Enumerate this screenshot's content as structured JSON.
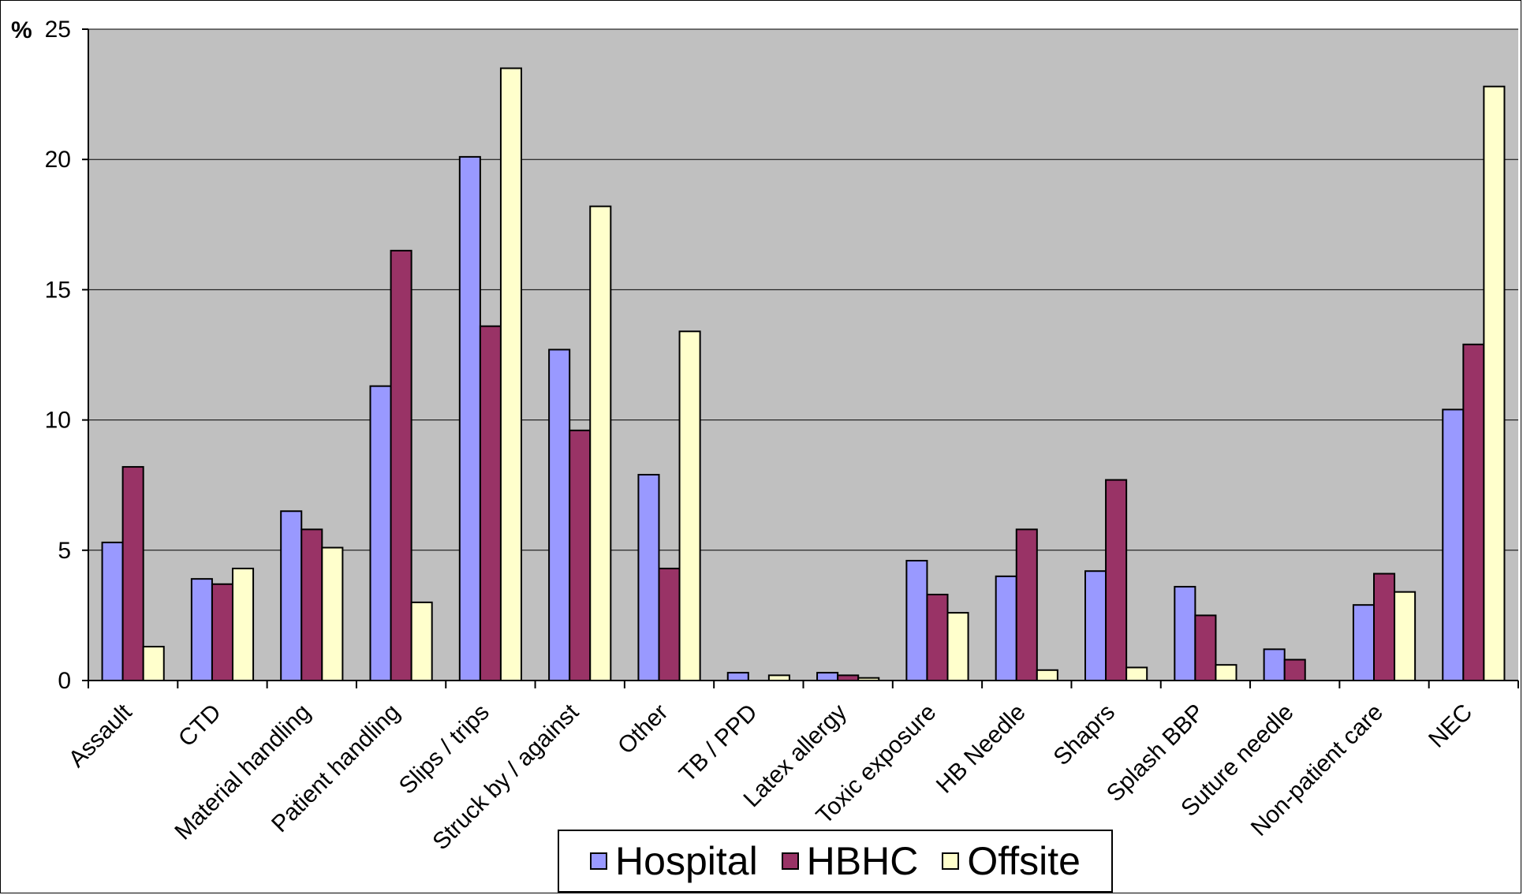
{
  "chart_data": {
    "type": "bar",
    "title": "",
    "xlabel": "",
    "ylabel": "%",
    "ylim": [
      0,
      25
    ],
    "yticks": [
      "0",
      "5",
      "10",
      "15",
      "20",
      "25"
    ],
    "grid": true,
    "legend_position": "bottom",
    "categories": [
      "Assault",
      "CTD",
      "Material handling",
      "Patient handling",
      "Slips / trips",
      "Struck by / against",
      "Other",
      "TB / PPD",
      "Latex allergy",
      "Toxic exposure",
      "HB Needle",
      "Shaprs",
      "Splash BBP",
      "Suture needle",
      "Non-patient care",
      "NEC"
    ],
    "series": [
      {
        "name": "Hospital",
        "color": "#9999ff",
        "values": [
          5.3,
          3.9,
          6.5,
          11.3,
          20.1,
          12.7,
          7.9,
          0.3,
          0.3,
          4.6,
          4.0,
          4.2,
          3.6,
          1.2,
          2.9,
          10.4
        ]
      },
      {
        "name": "HBHC",
        "color": "#993366",
        "values": [
          8.2,
          3.7,
          5.8,
          16.5,
          13.6,
          9.6,
          4.3,
          0.0,
          0.2,
          3.3,
          5.8,
          7.7,
          2.5,
          0.8,
          4.1,
          12.9
        ]
      },
      {
        "name": "Offsite",
        "color": "#ffffcc",
        "values": [
          1.3,
          4.3,
          5.1,
          3.0,
          23.5,
          18.2,
          13.4,
          0.2,
          0.1,
          2.6,
          0.4,
          0.5,
          0.6,
          0.0,
          3.4,
          22.8
        ]
      }
    ]
  },
  "colors": {
    "plot_background": "#c0c0c0",
    "gridline": "#000000"
  }
}
